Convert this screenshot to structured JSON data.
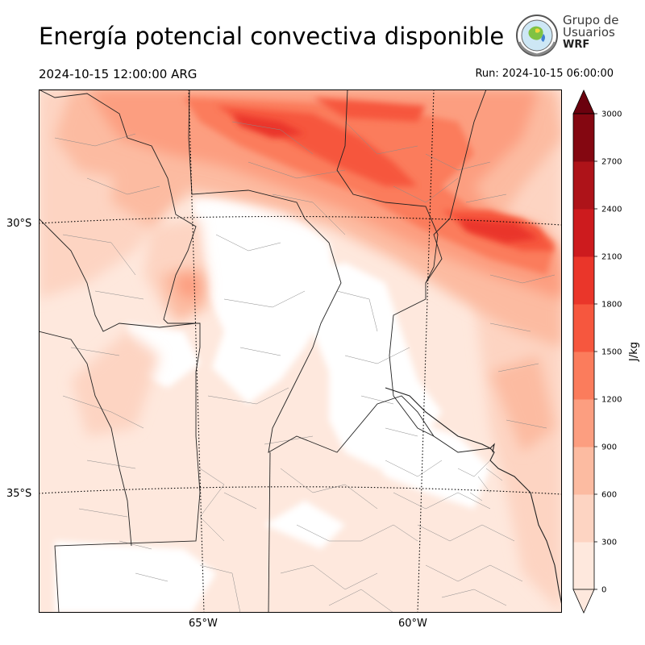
{
  "title": "Energía potencial convectiva disponible",
  "valid_time": "2024-10-15 12:00:00 ARG",
  "run_time": "Run: 2024-10-15 06:00:00",
  "logo": {
    "line1": "Grupo de",
    "line2": "Usuarios",
    "line3": "WRF"
  },
  "map": {
    "lat_labels": [
      "30°S",
      "35°S"
    ],
    "lon_labels": [
      "65°W",
      "60°W"
    ],
    "colors": {
      "frame": "#000000",
      "gridline": "#000000",
      "province_border": "#222222",
      "department_border": "#888888"
    }
  },
  "colorbar": {
    "label": "J/kg",
    "ticks": [
      "0",
      "300",
      "600",
      "900",
      "1200",
      "1500",
      "1800",
      "2100",
      "2400",
      "2700",
      "3000"
    ],
    "colors": [
      "#fee8dd",
      "#fdd4c2",
      "#fcbba1",
      "#fc9e80",
      "#fb7c5c",
      "#f6573e",
      "#ea362a",
      "#cd1b1e",
      "#ae1319",
      "#840711",
      "#6b010e"
    ],
    "extend": "both"
  }
}
